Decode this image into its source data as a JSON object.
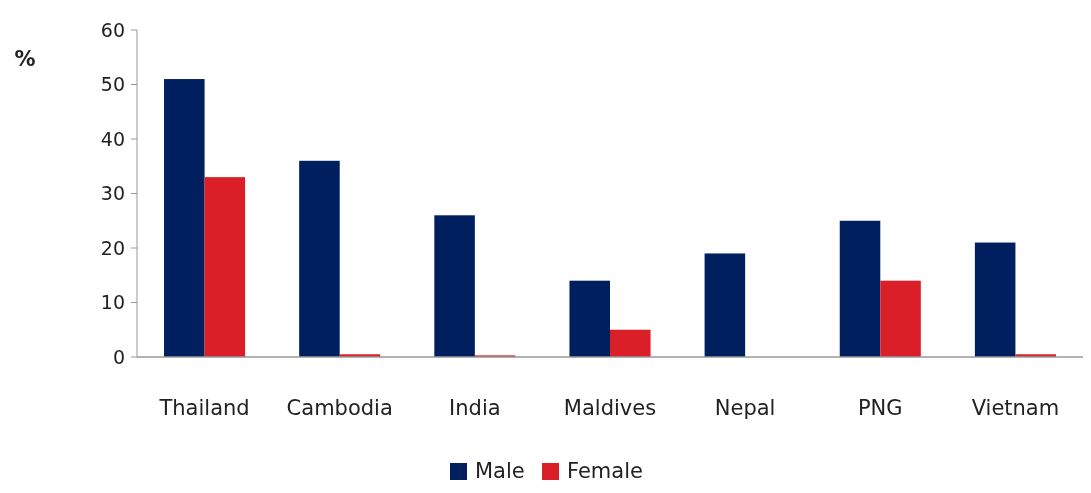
{
  "chart_data": {
    "type": "bar",
    "ylabel": "%",
    "categories": [
      "Thailand",
      "Cambodia",
      "India",
      "Maldives",
      "Nepal",
      "PNG",
      "Vietnam"
    ],
    "series": [
      {
        "name": "Male",
        "color": "#001f5f",
        "values": [
          51,
          36,
          26,
          14,
          19,
          25,
          21
        ]
      },
      {
        "name": "Female",
        "color": "#da1f29",
        "values": [
          33,
          0.5,
          0.3,
          5,
          null,
          14,
          0.5
        ]
      }
    ],
    "ylim": [
      0,
      60
    ],
    "yticks": [
      0,
      10,
      20,
      30,
      40,
      50,
      60
    ],
    "grid": false,
    "legend": "bottom"
  }
}
